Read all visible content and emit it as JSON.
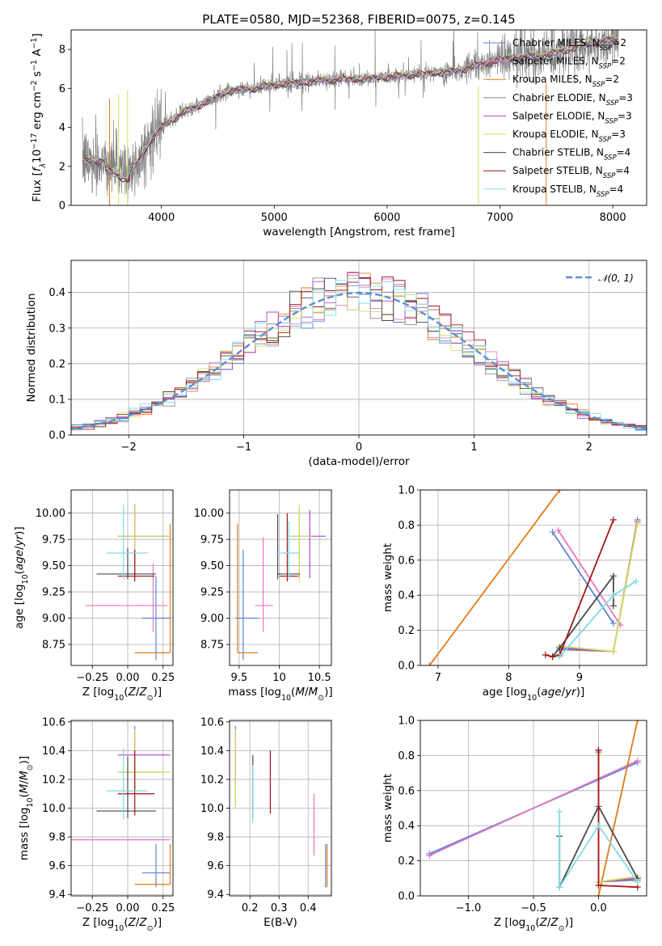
{
  "title": "PLATE=0580, MJD=52368, FIBERID=0075, z=0.145",
  "colors": {
    "Chabrier MILES": "#5b85d6",
    "Salpeter MILES": "#e377c2",
    "Kroupa MILES": "#e07b1c",
    "Chabrier ELODIE": "#8c8c8c",
    "Salpeter ELODIE": "#a64dcc",
    "Kroupa ELODIE": "#d6df5e",
    "Chabrier STELIB": "#4a4a4a",
    "Salpeter STELIB": "#a31515",
    "Kroupa STELIB": "#7fdce6",
    "data": "#808080",
    "normal": "#5b8fd8"
  },
  "legend_spectrum": [
    {
      "base": "Chabrier MILES, N",
      "sub": "SSP",
      "tail": "=2"
    },
    {
      "base": "Salpeter MILES, N",
      "sub": "SSP",
      "tail": "=2"
    },
    {
      "base": "Kroupa MILES, N",
      "sub": "SSP",
      "tail": "=2"
    },
    {
      "base": "Chabrier ELODIE, N",
      "sub": "SSP",
      "tail": "=3"
    },
    {
      "base": "Salpeter ELODIE, N",
      "sub": "SSP",
      "tail": "=3"
    },
    {
      "base": "Kroupa ELODIE, N",
      "sub": "SSP",
      "tail": "=3"
    },
    {
      "base": "Chabrier STELIB, N",
      "sub": "SSP",
      "tail": "=4"
    },
    {
      "base": "Salpeter STELIB, N",
      "sub": "SSP",
      "tail": "=4"
    },
    {
      "base": "Kroupa STELIB, N",
      "sub": "SSP",
      "tail": "=4"
    }
  ],
  "labels": {
    "spec_x": "wavelength [Angstrom, rest frame]",
    "spec_y": "Flux [fλ10⁻¹⁷ erg cm⁻² s⁻¹ A⁻¹]",
    "hist_x": "(data-model)/error",
    "hist_y": "Normed distribution",
    "hist_legend": "𝒩(0, 1)",
    "age_y": "age  [log₁₀(age/yr)]",
    "Z_x": "Z [log₁₀(Z/Z⊙)]",
    "mass_x": "mass [log₁₀(M/M⊙)]",
    "mass_y": "mass [log₁₀(M/M⊙)]",
    "ebv_x": "E(B-V)",
    "mw_y": "mass weight",
    "age_x": "age  [log₁₀(age/yr)]"
  },
  "chart_data": [
    {
      "id": "spectrum",
      "type": "line",
      "title": "PLATE=0580, MJD=52368, FIBERID=0075, z=0.145",
      "xlabel": "wavelength [Angstrom, rest frame]",
      "ylabel": "Flux [fλ10⁻¹⁷ erg cm⁻² s⁻¹ A⁻¹]",
      "xlim": [
        3200,
        8300
      ],
      "ylim": [
        0,
        9
      ],
      "xticks": [
        4000,
        5000,
        6000,
        7000,
        8000
      ],
      "yticks": [
        0,
        2,
        4,
        6,
        8
      ],
      "continuum": {
        "x": [
          3300,
          3500,
          3600,
          3700,
          3800,
          3900,
          4000,
          4200,
          4400,
          4600,
          4800,
          5000,
          5200,
          5400,
          5600,
          5800,
          6000,
          6200,
          6400,
          6600,
          6800,
          7000,
          7200,
          7400,
          7600,
          7800,
          8000
        ],
        "y": [
          2.3,
          2.3,
          2.0,
          1.7,
          2.3,
          3.3,
          4.0,
          4.8,
          5.3,
          5.9,
          6.0,
          6.2,
          6.3,
          6.4,
          6.5,
          6.5,
          6.6,
          6.7,
          6.8,
          6.9,
          7.2,
          7.5,
          7.6,
          7.7,
          8.0,
          8.3,
          8.5
        ]
      },
      "data_noise": "large (grey spectrum with noisy spikes and sky-line residuals)"
    },
    {
      "id": "residuals",
      "type": "line",
      "xlabel": "(data-model)/error",
      "ylabel": "Normed distribution",
      "xlim": [
        -2.5,
        2.5
      ],
      "ylim": [
        0,
        0.49
      ],
      "xticks": [
        -2,
        -1,
        0,
        1,
        2
      ],
      "yticks": [
        0.0,
        0.1,
        0.2,
        0.3,
        0.4
      ],
      "series": [
        {
          "name": "𝒩(0, 1)",
          "type": "normal-pdf",
          "mean": 0,
          "sd": 1
        }
      ],
      "histograms": "9 step histograms (one per model), bin width 0.1, approximately N(0,1)"
    },
    {
      "id": "Z_age",
      "type": "scatter",
      "xlabel": "Z [log₁₀(Z/Z⊙)]",
      "ylabel": "age  [log₁₀(age/yr)]",
      "xlim": [
        -0.4,
        0.32
      ],
      "ylim": [
        8.55,
        10.22
      ],
      "xticks": [
        -0.25,
        0.0,
        0.25
      ],
      "yticks": [
        8.75,
        9.0,
        9.25,
        9.5,
        9.75,
        10.0
      ],
      "points": [
        {
          "model": "Chabrier MILES",
          "x": 0.2,
          "y": 9.0,
          "xerr": [
            0.1,
            0.1
          ],
          "yerr": [
            0.4,
            0.4
          ]
        },
        {
          "model": "Salpeter MILES",
          "x": 0.18,
          "y": 9.12,
          "xerr": [
            0.48,
            0.1
          ],
          "yerr": [
            0.25,
            0.4
          ]
        },
        {
          "model": "Kroupa MILES",
          "x": 0.3,
          "y": 8.67,
          "xerr": [
            0.25,
            0.0
          ],
          "yerr": [
            0.0,
            1.23
          ]
        },
        {
          "model": "Chabrier ELODIE",
          "x": 0.05,
          "y": 9.78,
          "xerr": [
            0.12,
            0.2
          ],
          "yerr": [
            0.4,
            0.3
          ]
        },
        {
          "model": "Salpeter ELODIE",
          "x": 0.05,
          "y": 9.78,
          "xerr": [
            0.12,
            0.25
          ],
          "yerr": [
            0.4,
            0.3
          ]
        },
        {
          "model": "Kroupa ELODIE",
          "x": 0.05,
          "y": 9.78,
          "xerr": [
            0.12,
            0.25
          ],
          "yerr": [
            0.4,
            0.31
          ]
        },
        {
          "model": "Chabrier STELIB",
          "x": 0.0,
          "y": 9.42,
          "xerr": [
            0.22,
            0.2
          ],
          "yerr": [
            0.05,
            0.25
          ]
        },
        {
          "model": "Salpeter STELIB",
          "x": 0.05,
          "y": 9.4,
          "xerr": [
            0.12,
            0.14
          ],
          "yerr": [
            0.05,
            0.25
          ]
        },
        {
          "model": "Kroupa STELIB",
          "x": -0.03,
          "y": 9.62,
          "xerr": [
            0.12,
            0.17
          ],
          "yerr": [
            0.25,
            0.46
          ]
        }
      ]
    },
    {
      "id": "mass_age",
      "type": "scatter",
      "xlabel": "mass [log₁₀(M/M⊙)]",
      "xlim": [
        9.38,
        10.65
      ],
      "ylim": [
        8.55,
        10.22
      ],
      "xticks": [
        9.5,
        10.0,
        10.5
      ],
      "yticks": [
        8.75,
        9.0,
        9.25,
        9.5,
        9.75,
        10.0
      ],
      "points": [
        {
          "model": "Chabrier MILES",
          "x": 9.55,
          "y": 9.0,
          "xerr": [
            0.1,
            0.2
          ],
          "yerr": [
            0.4,
            0.65
          ]
        },
        {
          "model": "Salpeter MILES",
          "x": 9.8,
          "y": 9.12,
          "xerr": [
            0.1,
            0.12
          ],
          "yerr": [
            0.25,
            0.65
          ]
        },
        {
          "model": "Kroupa MILES",
          "x": 9.48,
          "y": 8.67,
          "xerr": [
            0.0,
            0.25
          ],
          "yerr": [
            0.0,
            1.23
          ]
        },
        {
          "model": "Chabrier ELODIE",
          "x": 10.25,
          "y": 9.78,
          "xerr": [
            0.12,
            0.15
          ],
          "yerr": [
            0.4,
            0.25
          ]
        },
        {
          "model": "Salpeter ELODIE",
          "x": 10.38,
          "y": 9.78,
          "xerr": [
            0.0,
            0.2
          ],
          "yerr": [
            0.4,
            0.25
          ]
        },
        {
          "model": "Kroupa ELODIE",
          "x": 10.25,
          "y": 9.78,
          "xerr": [
            0.12,
            0.15
          ],
          "yerr": [
            0.44,
            0.3
          ]
        },
        {
          "model": "Chabrier STELIB",
          "x": 9.98,
          "y": 9.42,
          "xerr": [
            0.0,
            0.28
          ],
          "yerr": [
            0.05,
            0.57
          ]
        },
        {
          "model": "Salpeter STELIB",
          "x": 10.1,
          "y": 9.4,
          "xerr": [
            0.1,
            0.14
          ],
          "yerr": [
            0.05,
            0.6
          ]
        },
        {
          "model": "Kroupa STELIB",
          "x": 10.12,
          "y": 9.62,
          "xerr": [
            0.16,
            0.13
          ],
          "yerr": [
            0.25,
            0.3
          ]
        }
      ]
    },
    {
      "id": "age_weight",
      "type": "line",
      "xlabel": "age  [log₁₀(age/yr)]",
      "ylabel": "mass weight",
      "xlim": [
        6.75,
        9.95
      ],
      "ylim": [
        0,
        1
      ],
      "xticks": [
        7,
        8,
        9
      ],
      "yticks": [
        0.0,
        0.2,
        0.4,
        0.6,
        0.8,
        1.0
      ],
      "series": [
        {
          "name": "Chabrier MILES",
          "x": [
            8.62,
            9.48
          ],
          "y": [
            0.76,
            0.24
          ]
        },
        {
          "name": "Salpeter MILES",
          "x": [
            8.7,
            9.58
          ],
          "y": [
            0.77,
            0.23
          ]
        },
        {
          "name": "Kroupa MILES",
          "x": [
            6.88,
            8.72
          ],
          "y": [
            0.0,
            1.0
          ]
        },
        {
          "name": "Chabrier ELODIE",
          "x": [
            8.72,
            9.48,
            9.82
          ],
          "y": [
            0.09,
            0.08,
            0.83
          ]
        },
        {
          "name": "Salpeter ELODIE",
          "x": [
            8.72,
            9.48,
            9.82
          ],
          "y": [
            0.1,
            0.08,
            0.82
          ]
        },
        {
          "name": "Kroupa ELODIE",
          "x": [
            8.72,
            9.48,
            9.82
          ],
          "y": [
            0.11,
            0.08,
            0.81
          ]
        },
        {
          "name": "Chabrier STELIB",
          "x": [
            8.62,
            8.72,
            9.48,
            9.48
          ],
          "y": [
            0.05,
            0.1,
            0.51,
            0.34
          ]
        },
        {
          "name": "Salpeter STELIB",
          "x": [
            8.52,
            8.62,
            8.72,
            9.48
          ],
          "y": [
            0.06,
            0.05,
            0.06,
            0.83
          ]
        },
        {
          "name": "Kroupa STELIB",
          "x": [
            8.72,
            9.48,
            9.8
          ],
          "y": [
            0.05,
            0.4,
            0.48
          ]
        }
      ]
    },
    {
      "id": "Z_mass",
      "type": "scatter",
      "xlabel": "Z [log₁₀(Z/Z⊙)]",
      "ylabel": "mass [log₁₀(M/M⊙)]",
      "xlim": [
        -0.4,
        0.32
      ],
      "ylim": [
        9.39,
        10.61
      ],
      "xticks": [
        -0.25,
        0.0,
        0.25
      ],
      "yticks": [
        9.4,
        9.6,
        9.8,
        10.0,
        10.2,
        10.4,
        10.6
      ],
      "points": [
        {
          "model": "Chabrier MILES",
          "x": 0.2,
          "y": 9.55,
          "xerr": [
            0.1,
            0.1
          ],
          "yerr": [
            0.1,
            0.2
          ]
        },
        {
          "model": "Salpeter MILES",
          "x": 0.18,
          "y": 9.78,
          "xerr": [
            0.58,
            0.12
          ],
          "yerr": [
            0.0,
            0.0
          ]
        },
        {
          "model": "Kroupa MILES",
          "x": 0.3,
          "y": 9.47,
          "xerr": [
            0.25,
            0.0
          ],
          "yerr": [
            0.0,
            0.28
          ]
        },
        {
          "model": "Chabrier ELODIE",
          "x": 0.05,
          "y": 10.25,
          "xerr": [
            0.12,
            0.2
          ],
          "yerr": [
            0.12,
            0.3
          ]
        },
        {
          "model": "Salpeter ELODIE",
          "x": 0.05,
          "y": 10.37,
          "xerr": [
            0.12,
            0.25
          ],
          "yerr": [
            0.0,
            0.2
          ]
        },
        {
          "model": "Kroupa ELODIE",
          "x": 0.05,
          "y": 10.25,
          "xerr": [
            0.12,
            0.25
          ],
          "yerr": [
            0.12,
            0.3
          ]
        },
        {
          "model": "Chabrier STELIB",
          "x": 0.0,
          "y": 9.98,
          "xerr": [
            0.22,
            0.2
          ],
          "yerr": [
            0.05,
            0.38
          ]
        },
        {
          "model": "Salpeter STELIB",
          "x": 0.05,
          "y": 10.1,
          "xerr": [
            0.12,
            0.14
          ],
          "yerr": [
            0.15,
            0.3
          ]
        },
        {
          "model": "Kroupa STELIB",
          "x": -0.03,
          "y": 10.12,
          "xerr": [
            0.12,
            0.17
          ],
          "yerr": [
            0.2,
            0.3
          ]
        }
      ]
    },
    {
      "id": "ebv_mass",
      "type": "scatter",
      "xlabel": "E(B-V)",
      "xlim": [
        0.13,
        0.48
      ],
      "ylim": [
        9.39,
        10.61
      ],
      "xticks": [
        0.2,
        0.3,
        0.4
      ],
      "yticks": [
        9.4,
        9.6,
        9.8,
        10.0,
        10.2,
        10.4,
        10.6
      ],
      "points": [
        {
          "model": "Chabrier MILES",
          "x": 0.46,
          "y": 9.55,
          "yerr": [
            0.1,
            0.2
          ]
        },
        {
          "model": "Salpeter MILES",
          "x": 0.42,
          "y": 9.82,
          "yerr": [
            0.15,
            0.28
          ]
        },
        {
          "model": "Kroupa MILES",
          "x": 0.465,
          "y": 9.6,
          "yerr": [
            0.15,
            0.15
          ]
        },
        {
          "model": "Chabrier ELODIE",
          "x": 0.15,
          "y": 10.22,
          "yerr": [
            0.2,
            0.2
          ]
        },
        {
          "model": "Salpeter ELODIE",
          "x": 0.15,
          "y": 10.37,
          "yerr": [
            0.2,
            0.2
          ]
        },
        {
          "model": "Kroupa ELODIE",
          "x": 0.15,
          "y": 10.25,
          "yerr": [
            0.25,
            0.3
          ]
        },
        {
          "model": "Chabrier STELIB",
          "x": 0.21,
          "y": 10.15,
          "yerr": [
            0.22,
            0.22
          ]
        },
        {
          "model": "Salpeter STELIB",
          "x": 0.27,
          "y": 10.18,
          "yerr": [
            0.22,
            0.22
          ]
        },
        {
          "model": "Kroupa STELIB",
          "x": 0.21,
          "y": 10.1,
          "yerr": [
            0.2,
            0.2
          ]
        }
      ]
    },
    {
      "id": "Z_weight",
      "type": "line",
      "xlabel": "Z [log₁₀(Z/Z⊙)]",
      "ylabel": "mass weight",
      "xlim": [
        -1.37,
        0.37
      ],
      "ylim": [
        0,
        1
      ],
      "xticks": [
        -1.0,
        -0.5,
        0.0
      ],
      "yticks": [
        0.0,
        0.2,
        0.4,
        0.6,
        0.8,
        1.0
      ],
      "series": [
        {
          "name": "Chabrier MILES",
          "x": [
            -1.3,
            0.3
          ],
          "y": [
            0.24,
            0.76
          ]
        },
        {
          "name": "Salpeter MILES",
          "x": [
            -1.3,
            0.3
          ],
          "y": [
            0.23,
            0.77
          ]
        },
        {
          "name": "Kroupa MILES",
          "x": [
            0.0,
            0.3
          ],
          "y": [
            0.0,
            1.0
          ]
        },
        {
          "name": "Chabrier ELODIE",
          "x": [
            0.0,
            0.0,
            0.3
          ],
          "y": [
            0.83,
            0.08,
            0.09
          ]
        },
        {
          "name": "Salpeter ELODIE",
          "x": [
            0.0,
            0.0,
            0.3
          ],
          "y": [
            0.82,
            0.08,
            0.1
          ]
        },
        {
          "name": "Kroupa ELODIE",
          "x": [
            0.0,
            0.0,
            0.3
          ],
          "y": [
            0.81,
            0.08,
            0.11
          ]
        },
        {
          "name": "Chabrier STELIB",
          "x": [
            -0.3,
            -0.3,
            0.0,
            0.3
          ],
          "y": [
            0.34,
            0.05,
            0.51,
            0.1
          ]
        },
        {
          "name": "Salpeter STELIB",
          "x": [
            0.0,
            0.0,
            0.3
          ],
          "y": [
            0.83,
            0.06,
            0.05
          ]
        },
        {
          "name": "Kroupa STELIB",
          "x": [
            -0.3,
            -0.3,
            0.0,
            0.3
          ],
          "y": [
            0.48,
            0.05,
            0.4,
            0.08
          ]
        }
      ]
    }
  ]
}
